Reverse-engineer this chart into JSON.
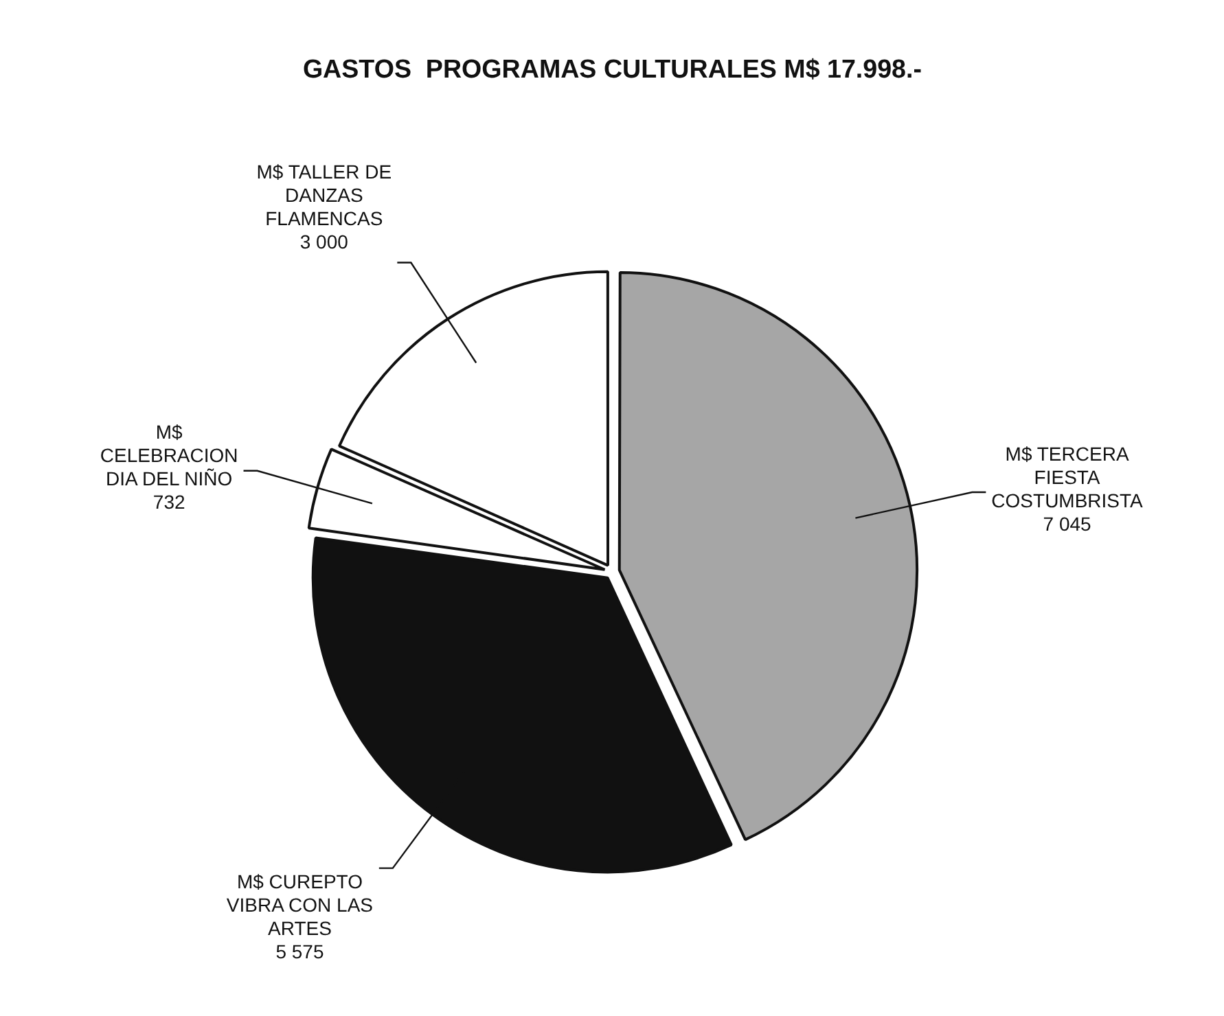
{
  "chart_data": {
    "type": "pie",
    "title": "GASTOS  PROGRAMAS CULTURALES M$ 17.998.-",
    "categories": [
      "M$ TERCERA FIESTA COSTUMBRISTA",
      "M$ CUREPTO VIBRA CON LAS ARTES",
      "M$ CELEBRACION DIA DEL NIÑO",
      "M$ TALLER DE DANZAS FLAMENCAS"
    ],
    "values": [
      7045,
      5575,
      732,
      3000
    ],
    "value_labels": [
      "7 045",
      "5 575",
      "732",
      "3 000"
    ],
    "colors": [
      "#a6a6a6",
      "#111111",
      "#ffffff",
      "#ffffff"
    ],
    "legend": false
  }
}
